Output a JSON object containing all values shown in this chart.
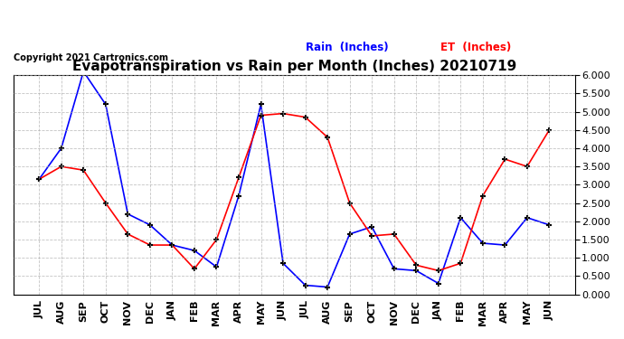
{
  "title": "Evapotranspiration vs Rain per Month (Inches) 20210719",
  "copyright": "Copyright 2021 Cartronics.com",
  "labels": [
    "JUL",
    "AUG",
    "SEP",
    "OCT",
    "NOV",
    "DEC",
    "JAN",
    "FEB",
    "MAR",
    "APR",
    "MAY",
    "JUN",
    "JUL",
    "AUG",
    "SEP",
    "OCT",
    "NOV",
    "DEC",
    "JAN",
    "FEB",
    "MAR",
    "APR",
    "MAY",
    "JUN"
  ],
  "rain": [
    3.15,
    4.0,
    6.1,
    5.2,
    2.2,
    1.9,
    1.35,
    1.2,
    0.75,
    2.7,
    5.2,
    0.85,
    0.25,
    0.2,
    1.65,
    1.85,
    0.7,
    0.65,
    0.3,
    2.1,
    1.4,
    1.35,
    2.1,
    1.9
  ],
  "et": [
    3.15,
    3.5,
    3.4,
    2.5,
    1.65,
    1.35,
    1.35,
    0.7,
    1.5,
    3.2,
    4.9,
    4.95,
    4.85,
    4.3,
    2.5,
    1.6,
    1.65,
    0.8,
    0.65,
    0.85,
    2.7,
    3.7,
    3.5,
    4.5
  ],
  "rain_color": "#0000ff",
  "et_color": "#ff0000",
  "ylim": [
    0.0,
    6.0
  ],
  "yticks": [
    0.0,
    0.5,
    1.0,
    1.5,
    2.0,
    2.5,
    3.0,
    3.5,
    4.0,
    4.5,
    5.0,
    5.5,
    6.0
  ],
  "background_color": "#ffffff",
  "grid_color": "#aaaaaa",
  "title_fontsize": 11,
  "copyright_fontsize": 7,
  "tick_fontsize": 8,
  "legend_rain": "Rain  (Inches)",
  "legend_et": "ET  (Inches)"
}
